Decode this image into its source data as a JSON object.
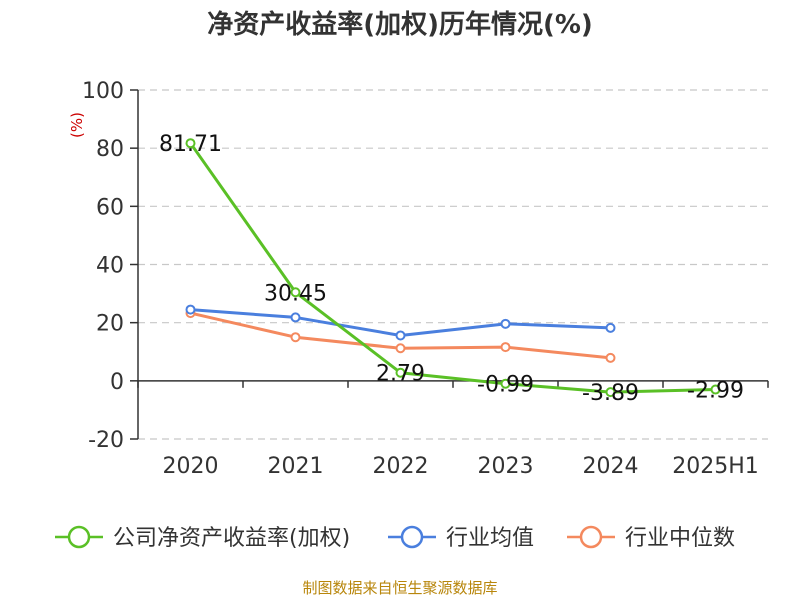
{
  "chart_data": {
    "type": "line",
    "title": "净资产收益率(加权)历年情况(%)",
    "unit_label": "(%)",
    "categories": [
      "2020",
      "2021",
      "2022",
      "2023",
      "2024",
      "2025H1"
    ],
    "ylim": [
      -20,
      100
    ],
    "yticks": [
      100,
      80,
      60,
      40,
      20,
      0,
      -20
    ],
    "grid": true,
    "legend_position": "bottom",
    "series": [
      {
        "name": "公司净资产收益率(加权)",
        "color": "#5ac026",
        "values": [
          81.71,
          30.45,
          2.79,
          -0.99,
          -3.89,
          -2.99
        ],
        "labels": [
          "81.71",
          "30.45",
          "2.79",
          "-0.99",
          "-3.89",
          "-2.99"
        ]
      },
      {
        "name": "行业均值",
        "color": "#4a7fde",
        "values": [
          24.5,
          21.8,
          15.6,
          19.6,
          18.2,
          null
        ]
      },
      {
        "name": "行业中位数",
        "color": "#f4895e",
        "values": [
          23.3,
          15.0,
          11.2,
          11.6,
          7.9,
          null
        ]
      }
    ]
  },
  "footer": {
    "source": "制图数据来自恒生聚源数据库"
  }
}
